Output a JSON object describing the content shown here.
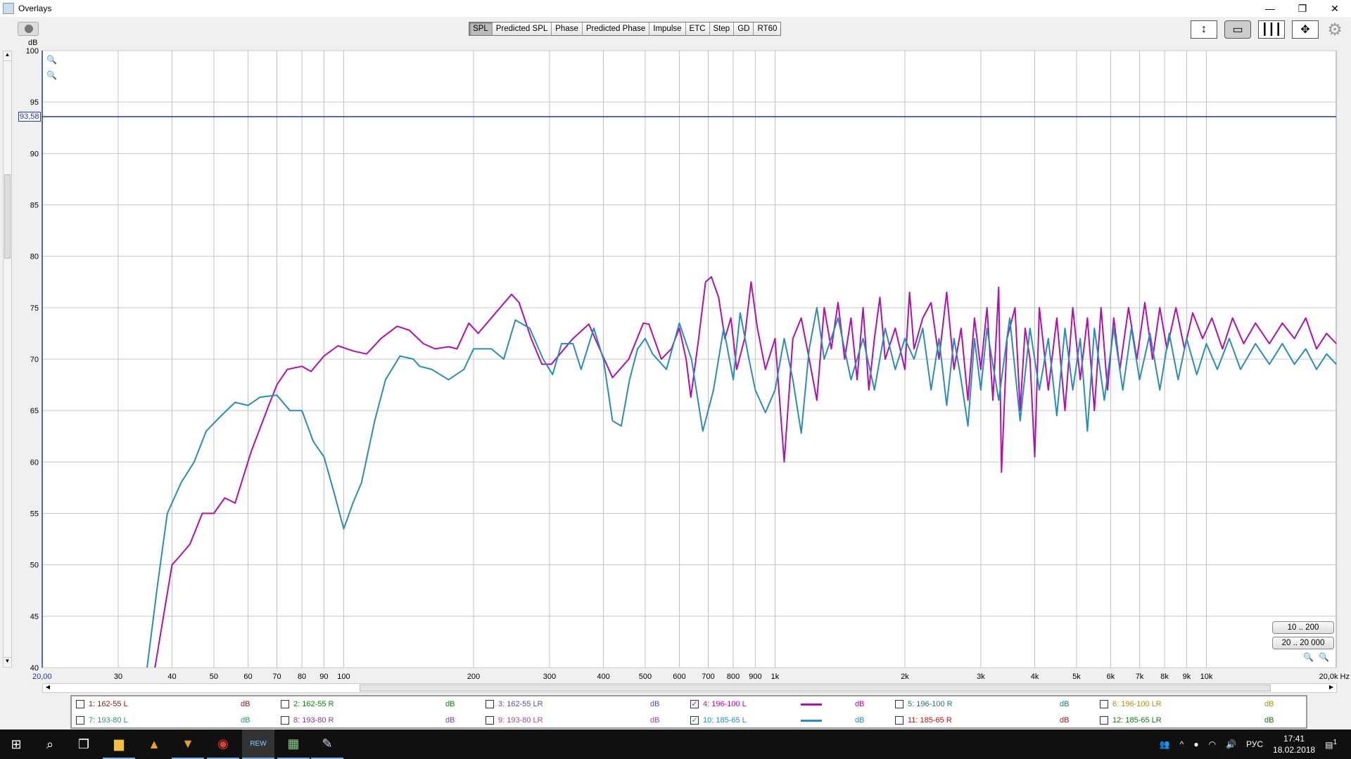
{
  "window": {
    "title": "Overlays",
    "minimize": "—",
    "restore": "❐",
    "close": "✕"
  },
  "toolbar": {
    "tabs": [
      "SPL",
      "Predicted SPL",
      "Phase",
      "Predicted Phase",
      "Impulse",
      "ETC",
      "Step",
      "GD",
      "RT60"
    ],
    "active_tab": "SPL",
    "icons": [
      "vertical-scale-icon",
      "limits-icon",
      "grid-icon",
      "pan-zoom-icon",
      "gear-icon"
    ]
  },
  "axis": {
    "y_unit": "dB",
    "x_unit": "Hz",
    "x_start_label": "20,00",
    "x_end_label": "20,0k Hz",
    "cursor_value": "93,58"
  },
  "range_buttons": [
    "10 .. 200",
    "20 .. 20 000"
  ],
  "legend": {
    "items": [
      {
        "label": "1: 162-55 L",
        "unit": "dB",
        "color": "#a01010",
        "checked": false
      },
      {
        "label": "2: 162-55 R",
        "unit": "dB",
        "color": "#108010",
        "checked": false
      },
      {
        "label": "3: 162-55 LR",
        "unit": "dB",
        "color": "#5050b0",
        "checked": false
      },
      {
        "label": "4: 196-100 L",
        "unit": "dB",
        "color": "#b010b0",
        "checked": true
      },
      {
        "label": "5: 196-100 R",
        "unit": "dB",
        "color": "#108080",
        "checked": false
      },
      {
        "label": "6: 196-100 LR",
        "unit": "dB",
        "color": "#b09020",
        "checked": false
      },
      {
        "label": "7: 193-80 L",
        "unit": "dB",
        "color": "#20a060",
        "checked": false
      },
      {
        "label": "8: 193-80 R",
        "unit": "dB",
        "color": "#8040a0",
        "checked": false
      },
      {
        "label": "9: 193-80 LR",
        "unit": "dB",
        "color": "#b040a0",
        "checked": false
      },
      {
        "label": "10: 185-65 L",
        "unit": "dB",
        "color": "#2b8cb8",
        "checked": true
      },
      {
        "label": "11: 185-65 R",
        "unit": "dB",
        "color": "#c01010",
        "checked": false
      },
      {
        "label": "12: 185-65 LR",
        "unit": "dB",
        "color": "#207020",
        "checked": false
      }
    ]
  },
  "chart_data": {
    "type": "line",
    "xscale": "log",
    "xlim": [
      20,
      20000
    ],
    "ylim": [
      40,
      100
    ],
    "grid": true,
    "ylabel": "dB",
    "xlabel": "Hz",
    "yticks": [
      40,
      45,
      50,
      55,
      60,
      65,
      70,
      75,
      80,
      85,
      90,
      95,
      100
    ],
    "xticks": [
      {
        "v": 30,
        "l": "30"
      },
      {
        "v": 40,
        "l": "40"
      },
      {
        "v": 50,
        "l": "50"
      },
      {
        "v": 60,
        "l": "60"
      },
      {
        "v": 70,
        "l": "70"
      },
      {
        "v": 80,
        "l": "80"
      },
      {
        "v": 90,
        "l": "90"
      },
      {
        "v": 100,
        "l": "100"
      },
      {
        "v": 200,
        "l": "200"
      },
      {
        "v": 300,
        "l": "300"
      },
      {
        "v": 400,
        "l": "400"
      },
      {
        "v": 500,
        "l": "500"
      },
      {
        "v": 600,
        "l": "600"
      },
      {
        "v": 700,
        "l": "700"
      },
      {
        "v": 800,
        "l": "800"
      },
      {
        "v": 900,
        "l": "900"
      },
      {
        "v": 1000,
        "l": "1k"
      },
      {
        "v": 2000,
        "l": "2k"
      },
      {
        "v": 3000,
        "l": "3k"
      },
      {
        "v": 4000,
        "l": "4k"
      },
      {
        "v": 5000,
        "l": "5k"
      },
      {
        "v": 6000,
        "l": "6k"
      },
      {
        "v": 7000,
        "l": "7k"
      },
      {
        "v": 8000,
        "l": "8k"
      },
      {
        "v": 9000,
        "l": "9k"
      },
      {
        "v": 10000,
        "l": "10k"
      }
    ],
    "cursor_line": 93.58,
    "series": [
      {
        "name": "4: 196-100 L",
        "color": "#b010b0",
        "points": [
          [
            36.5,
            40
          ],
          [
            40,
            50
          ],
          [
            42,
            51
          ],
          [
            44,
            52
          ],
          [
            47,
            55
          ],
          [
            50,
            55
          ],
          [
            53,
            56.5
          ],
          [
            56,
            56
          ],
          [
            61,
            61
          ],
          [
            67,
            65.5
          ],
          [
            70,
            67.5
          ],
          [
            74,
            69
          ],
          [
            80,
            69.3
          ],
          [
            84,
            68.8
          ],
          [
            90,
            70.3
          ],
          [
            97,
            71.3
          ],
          [
            105,
            70.8
          ],
          [
            113,
            70.5
          ],
          [
            122,
            72
          ],
          [
            133,
            73.2
          ],
          [
            142,
            72.8
          ],
          [
            153,
            71.5
          ],
          [
            163,
            71
          ],
          [
            175,
            71.2
          ],
          [
            183,
            71
          ],
          [
            195,
            73.5
          ],
          [
            205,
            72.5
          ],
          [
            225,
            74.5
          ],
          [
            245,
            76.3
          ],
          [
            255,
            75.5
          ],
          [
            272,
            72
          ],
          [
            288,
            69.5
          ],
          [
            303,
            69.5
          ],
          [
            340,
            72
          ],
          [
            370,
            73.4
          ],
          [
            392,
            71
          ],
          [
            420,
            68.2
          ],
          [
            458,
            70
          ],
          [
            495,
            73.5
          ],
          [
            510,
            73.4
          ],
          [
            545,
            70
          ],
          [
            575,
            71
          ],
          [
            600,
            73
          ],
          [
            622,
            70
          ],
          [
            638,
            66.3
          ],
          [
            665,
            72
          ],
          [
            690,
            77.5
          ],
          [
            712,
            78
          ],
          [
            740,
            76
          ],
          [
            765,
            72
          ],
          [
            790,
            74
          ],
          [
            815,
            69
          ],
          [
            850,
            72
          ],
          [
            880,
            77.5
          ],
          [
            910,
            73
          ],
          [
            950,
            69
          ],
          [
            1000,
            72
          ],
          [
            1050,
            60
          ],
          [
            1100,
            72
          ],
          [
            1150,
            74
          ],
          [
            1200,
            70
          ],
          [
            1250,
            66
          ],
          [
            1300,
            75
          ],
          [
            1350,
            71
          ],
          [
            1400,
            75.5
          ],
          [
            1450,
            70
          ],
          [
            1500,
            74
          ],
          [
            1550,
            68
          ],
          [
            1600,
            75
          ],
          [
            1650,
            67
          ],
          [
            1700,
            72
          ],
          [
            1750,
            76
          ],
          [
            1800,
            70
          ],
          [
            1900,
            73
          ],
          [
            2000,
            69
          ],
          [
            2050,
            76.5
          ],
          [
            2100,
            71
          ],
          [
            2200,
            74
          ],
          [
            2300,
            75.5
          ],
          [
            2400,
            70
          ],
          [
            2500,
            76.5
          ],
          [
            2600,
            69
          ],
          [
            2700,
            73
          ],
          [
            2800,
            66
          ],
          [
            2900,
            74
          ],
          [
            3000,
            69
          ],
          [
            3100,
            75
          ],
          [
            3200,
            66
          ],
          [
            3300,
            77
          ],
          [
            3350,
            59
          ],
          [
            3450,
            72
          ],
          [
            3600,
            75
          ],
          [
            3700,
            65
          ],
          [
            3800,
            73
          ],
          [
            3900,
            70
          ],
          [
            4000,
            60.5
          ],
          [
            4100,
            75
          ],
          [
            4300,
            67
          ],
          [
            4500,
            74
          ],
          [
            4700,
            65
          ],
          [
            4900,
            75
          ],
          [
            5100,
            68
          ],
          [
            5300,
            74
          ],
          [
            5500,
            65
          ],
          [
            5700,
            75
          ],
          [
            5900,
            67
          ],
          [
            6100,
            74
          ],
          [
            6300,
            69
          ],
          [
            6600,
            75
          ],
          [
            6900,
            70
          ],
          [
            7200,
            75.5
          ],
          [
            7500,
            70
          ],
          [
            7800,
            75
          ],
          [
            8100,
            71
          ],
          [
            8500,
            75
          ],
          [
            8900,
            71
          ],
          [
            9300,
            74.5
          ],
          [
            9800,
            72
          ],
          [
            10300,
            74
          ],
          [
            10900,
            71
          ],
          [
            11500,
            74
          ],
          [
            12200,
            71.5
          ],
          [
            13000,
            73.5
          ],
          [
            14000,
            71.5
          ],
          [
            15000,
            73.5
          ],
          [
            16000,
            72
          ],
          [
            17000,
            74
          ],
          [
            18000,
            71
          ],
          [
            19000,
            72.5
          ],
          [
            20000,
            71.5
          ]
        ]
      },
      {
        "name": "10: 185-65 L",
        "color": "#2b8cb8",
        "points": [
          [
            35,
            40
          ],
          [
            37,
            48
          ],
          [
            39,
            55
          ],
          [
            42,
            58
          ],
          [
            45,
            60
          ],
          [
            48,
            63
          ],
          [
            52,
            64.5
          ],
          [
            56,
            65.8
          ],
          [
            60,
            65.5
          ],
          [
            64,
            66.3
          ],
          [
            70,
            66.5
          ],
          [
            75,
            65
          ],
          [
            80,
            65
          ],
          [
            85,
            62
          ],
          [
            90,
            60.5
          ],
          [
            95,
            57
          ],
          [
            100,
            53.5
          ],
          [
            105,
            56
          ],
          [
            110,
            58
          ],
          [
            118,
            64
          ],
          [
            125,
            68
          ],
          [
            135,
            70.3
          ],
          [
            145,
            70
          ],
          [
            150,
            69.3
          ],
          [
            160,
            69
          ],
          [
            175,
            68
          ],
          [
            190,
            69
          ],
          [
            200,
            71
          ],
          [
            220,
            71
          ],
          [
            235,
            70
          ],
          [
            250,
            73.8
          ],
          [
            270,
            73
          ],
          [
            290,
            70
          ],
          [
            305,
            68.5
          ],
          [
            320,
            71.5
          ],
          [
            340,
            71.5
          ],
          [
            355,
            69
          ],
          [
            380,
            73
          ],
          [
            400,
            70
          ],
          [
            420,
            64
          ],
          [
            440,
            63.5
          ],
          [
            460,
            68
          ],
          [
            480,
            71
          ],
          [
            500,
            72
          ],
          [
            520,
            70.5
          ],
          [
            560,
            69
          ],
          [
            600,
            73.5
          ],
          [
            640,
            70
          ],
          [
            680,
            63
          ],
          [
            720,
            67
          ],
          [
            760,
            73
          ],
          [
            800,
            68
          ],
          [
            830,
            74.5
          ],
          [
            870,
            70
          ],
          [
            900,
            67
          ],
          [
            950,
            64.8
          ],
          [
            1000,
            67
          ],
          [
            1050,
            72
          ],
          [
            1100,
            68
          ],
          [
            1150,
            62.8
          ],
          [
            1200,
            71
          ],
          [
            1250,
            75
          ],
          [
            1300,
            70
          ],
          [
            1400,
            74
          ],
          [
            1500,
            68
          ],
          [
            1600,
            72
          ],
          [
            1700,
            67
          ],
          [
            1800,
            73
          ],
          [
            1900,
            69
          ],
          [
            2000,
            72
          ],
          [
            2100,
            70
          ],
          [
            2200,
            73
          ],
          [
            2300,
            67
          ],
          [
            2400,
            72
          ],
          [
            2500,
            65.5
          ],
          [
            2600,
            72
          ],
          [
            2700,
            68
          ],
          [
            2800,
            63.5
          ],
          [
            2900,
            72
          ],
          [
            3000,
            67
          ],
          [
            3100,
            73
          ],
          [
            3300,
            66
          ],
          [
            3500,
            74
          ],
          [
            3700,
            64
          ],
          [
            3900,
            73
          ],
          [
            4100,
            67
          ],
          [
            4300,
            72
          ],
          [
            4500,
            64.5
          ],
          [
            4700,
            73
          ],
          [
            4900,
            67
          ],
          [
            5100,
            72
          ],
          [
            5300,
            63
          ],
          [
            5500,
            73
          ],
          [
            5800,
            66
          ],
          [
            6100,
            73
          ],
          [
            6400,
            67
          ],
          [
            6700,
            73
          ],
          [
            7000,
            68
          ],
          [
            7400,
            72.5
          ],
          [
            7800,
            67
          ],
          [
            8200,
            72.5
          ],
          [
            8600,
            68
          ],
          [
            9000,
            72
          ],
          [
            9500,
            68.5
          ],
          [
            10000,
            71.5
          ],
          [
            10600,
            69
          ],
          [
            11300,
            72
          ],
          [
            12000,
            69
          ],
          [
            13000,
            71.5
          ],
          [
            14000,
            69.5
          ],
          [
            15000,
            71.5
          ],
          [
            16000,
            69.5
          ],
          [
            17000,
            71
          ],
          [
            18000,
            69
          ],
          [
            19000,
            70.5
          ],
          [
            20000,
            69.5
          ]
        ]
      }
    ]
  },
  "taskbar": {
    "apps": [
      "start-icon",
      "search-icon",
      "task-view-icon",
      "file-explorer-icon",
      "aimp-icon",
      "browser-icon",
      "chrome-icon",
      "rew-icon",
      "calculator-icon",
      "paint-icon"
    ],
    "rew_label": "REW",
    "lang": "РУС",
    "time": "17:41",
    "date": "18.02.2018",
    "notifications": "1"
  }
}
